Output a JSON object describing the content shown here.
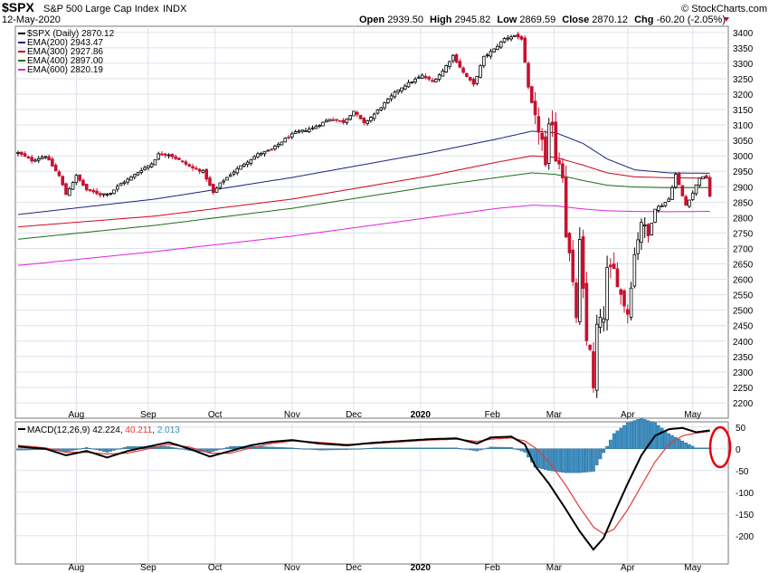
{
  "header": {
    "symbol": "$SPX",
    "name": "S&P 500 Large Cap Index",
    "exchange": "INDX",
    "date": "12-May-2020",
    "copyright": "© StockCharts.com",
    "quote": {
      "open_label": "Open",
      "open": "2939.50",
      "high_label": "High",
      "high": "2945.82",
      "low_label": "Low",
      "low": "2869.59",
      "close_label": "Close",
      "close": "2870.12",
      "chg_label": "Chg",
      "chg": "-60.20 (-2.05%)"
    }
  },
  "legend": {
    "price": "$SPX (Daily) 2870.12",
    "ema200": "EMA(200) 2943.47",
    "ema300": "EMA(300) 2927.86",
    "ema400": "EMA(400) 2897.00",
    "ema600": "EMA(600) 2820.19"
  },
  "macd_legend": {
    "label": "MACD(12,26,9)",
    "macd": "42.224",
    "signal": "40.211",
    "hist": "2.013"
  },
  "colors": {
    "up": "#000000",
    "down": "#c8102e",
    "ema200": "#1a237e",
    "ema300": "#d0021b",
    "ema400": "#1b6e1b",
    "ema600": "#e020e0",
    "macd": "#000000",
    "signal": "#e53935",
    "histogram": "#3b8fc4",
    "grid": "#dde2ea",
    "highlight": "#e8000b"
  },
  "chart_data": [
    {
      "type": "candlestick",
      "title": "$SPX S&P 500 Large Cap Index (Daily)",
      "ylim": [
        2150,
        3420
      ],
      "y_ticks": [
        2200,
        2250,
        2300,
        2350,
        2400,
        2450,
        2500,
        2550,
        2600,
        2650,
        2700,
        2750,
        2800,
        2850,
        2900,
        2950,
        3000,
        3050,
        3100,
        3150,
        3200,
        3250,
        3300,
        3350,
        3400
      ],
      "x_ticks": [
        {
          "label": "Aug",
          "x": 17.0
        },
        {
          "label": "Sep",
          "x": 38.0
        },
        {
          "label": "Oct",
          "x": 57.5
        },
        {
          "label": "Nov",
          "x": 80.0
        },
        {
          "label": "Dec",
          "x": 98.0
        },
        {
          "label": "2020",
          "x": 117.5,
          "bold": true
        },
        {
          "label": "Feb",
          "x": 138.5
        },
        {
          "label": "Mar",
          "x": 156.5
        },
        {
          "label": "Apr",
          "x": 178.0
        },
        {
          "label": "May",
          "x": 197.0
        }
      ],
      "x_range": [
        0,
        205
      ],
      "anchors": [
        [
          0,
          3010
        ],
        [
          4,
          2985
        ],
        [
          8,
          3000
        ],
        [
          12,
          2935
        ],
        [
          14,
          2875
        ],
        [
          17,
          2935
        ],
        [
          20,
          2890
        ],
        [
          24,
          2875
        ],
        [
          27,
          2880
        ],
        [
          30,
          2910
        ],
        [
          33,
          2930
        ],
        [
          36,
          2955
        ],
        [
          39,
          2975
        ],
        [
          41,
          3005
        ],
        [
          44,
          3005
        ],
        [
          48,
          2980
        ],
        [
          51,
          2960
        ],
        [
          54,
          2950
        ],
        [
          57,
          2880
        ],
        [
          59,
          2910
        ],
        [
          62,
          2940
        ],
        [
          66,
          2975
        ],
        [
          70,
          3005
        ],
        [
          74,
          3020
        ],
        [
          78,
          3055
        ],
        [
          81,
          3075
        ],
        [
          86,
          3090
        ],
        [
          91,
          3120
        ],
        [
          95,
          3110
        ],
        [
          98,
          3145
        ],
        [
          101,
          3105
        ],
        [
          104,
          3135
        ],
        [
          107,
          3170
        ],
        [
          111,
          3215
        ],
        [
          114,
          3235
        ],
        [
          118,
          3260
        ],
        [
          121,
          3240
        ],
        [
          124,
          3275
        ],
        [
          127,
          3325
        ],
        [
          130,
          3270
        ],
        [
          133,
          3230
        ],
        [
          136,
          3320
        ],
        [
          139,
          3345
        ],
        [
          142,
          3380
        ],
        [
          145,
          3390
        ],
        [
          147,
          3380
        ],
        [
          149,
          3220
        ],
        [
          151,
          3120
        ],
        [
          153,
          3050
        ],
        [
          154,
          2960
        ],
        [
          155,
          3090
        ],
        [
          156,
          3110
        ],
        [
          157,
          2990
        ],
        [
          158,
          2980
        ],
        [
          159,
          2940
        ],
        [
          160,
          2745
        ],
        [
          161,
          2680
        ],
        [
          163,
          2480
        ],
        [
          164,
          2720
        ],
        [
          166,
          2400
        ],
        [
          167,
          2380
        ],
        [
          168,
          2240
        ],
        [
          169,
          2450
        ],
        [
          171,
          2480
        ],
        [
          172,
          2630
        ],
        [
          174,
          2630
        ],
        [
          176,
          2550
        ],
        [
          178,
          2490
        ],
        [
          180,
          2680
        ],
        [
          182,
          2790
        ],
        [
          184,
          2740
        ],
        [
          186,
          2830
        ],
        [
          188,
          2840
        ],
        [
          190,
          2860
        ],
        [
          192,
          2940
        ],
        [
          194,
          2870
        ],
        [
          195,
          2840
        ],
        [
          197,
          2880
        ],
        [
          199,
          2930
        ],
        [
          201,
          2930
        ],
        [
          202,
          2870
        ]
      ],
      "candle_count": 203,
      "ema_series": [
        {
          "name": "EMA(200)",
          "color": "#1a237e",
          "anchors": [
            [
              0,
              2810
            ],
            [
              40,
              2860
            ],
            [
              80,
              2930
            ],
            [
              120,
              3010
            ],
            [
              140,
              3055
            ],
            [
              150,
              3080
            ],
            [
              157,
              3075
            ],
            [
              165,
              3040
            ],
            [
              172,
              2990
            ],
            [
              180,
              2955
            ],
            [
              190,
              2945
            ],
            [
              202,
              2943.47
            ]
          ]
        },
        {
          "name": "EMA(300)",
          "color": "#d0021b",
          "anchors": [
            [
              0,
              2770
            ],
            [
              40,
              2805
            ],
            [
              80,
              2860
            ],
            [
              120,
              2935
            ],
            [
              140,
              2980
            ],
            [
              150,
              3000
            ],
            [
              157,
              2995
            ],
            [
              165,
              2970
            ],
            [
              172,
              2945
            ],
            [
              180,
              2932
            ],
            [
              190,
              2929
            ],
            [
              202,
              2927.86
            ]
          ]
        },
        {
          "name": "EMA(400)",
          "color": "#1b6e1b",
          "anchors": [
            [
              0,
              2730
            ],
            [
              40,
              2775
            ],
            [
              80,
              2830
            ],
            [
              120,
              2900
            ],
            [
              140,
              2930
            ],
            [
              150,
              2945
            ],
            [
              157,
              2940
            ],
            [
              165,
              2920
            ],
            [
              172,
              2905
            ],
            [
              180,
              2899
            ],
            [
              190,
              2897
            ],
            [
              202,
              2897.0
            ]
          ]
        },
        {
          "name": "EMA(600)",
          "color": "#e020e0",
          "anchors": [
            [
              0,
              2645
            ],
            [
              40,
              2690
            ],
            [
              80,
              2740
            ],
            [
              120,
              2800
            ],
            [
              140,
              2830
            ],
            [
              150,
              2840
            ],
            [
              157,
              2838
            ],
            [
              165,
              2828
            ],
            [
              172,
              2822
            ],
            [
              180,
              2820
            ],
            [
              190,
              2819
            ],
            [
              202,
              2820.19
            ]
          ]
        }
      ]
    },
    {
      "type": "line+histogram",
      "title": "MACD(12,26,9)",
      "ylim": [
        -265,
        62
      ],
      "y_ticks": [
        50,
        0,
        -50,
        -100,
        -150,
        -200
      ],
      "macd_anchors": [
        [
          0,
          5
        ],
        [
          8,
          0
        ],
        [
          14,
          -15
        ],
        [
          20,
          -5
        ],
        [
          26,
          -20
        ],
        [
          32,
          -5
        ],
        [
          38,
          5
        ],
        [
          44,
          15
        ],
        [
          50,
          0
        ],
        [
          56,
          -18
        ],
        [
          62,
          -5
        ],
        [
          68,
          8
        ],
        [
          74,
          16
        ],
        [
          80,
          20
        ],
        [
          88,
          12
        ],
        [
          96,
          8
        ],
        [
          104,
          14
        ],
        [
          112,
          18
        ],
        [
          120,
          22
        ],
        [
          128,
          24
        ],
        [
          134,
          12
        ],
        [
          138,
          26
        ],
        [
          144,
          28
        ],
        [
          148,
          10
        ],
        [
          151,
          -40
        ],
        [
          155,
          -80
        ],
        [
          160,
          -140
        ],
        [
          164,
          -190
        ],
        [
          168,
          -232
        ],
        [
          171,
          -205
        ],
        [
          174,
          -150
        ],
        [
          178,
          -80
        ],
        [
          182,
          -15
        ],
        [
          186,
          30
        ],
        [
          190,
          45
        ],
        [
          194,
          48
        ],
        [
          198,
          38
        ],
        [
          202,
          42.224
        ]
      ],
      "signal_anchors": [
        [
          0,
          8
        ],
        [
          8,
          2
        ],
        [
          14,
          -8
        ],
        [
          20,
          -8
        ],
        [
          26,
          -12
        ],
        [
          32,
          -10
        ],
        [
          38,
          0
        ],
        [
          44,
          10
        ],
        [
          50,
          4
        ],
        [
          56,
          -10
        ],
        [
          62,
          -10
        ],
        [
          68,
          2
        ],
        [
          74,
          12
        ],
        [
          80,
          18
        ],
        [
          88,
          15
        ],
        [
          96,
          10
        ],
        [
          104,
          12
        ],
        [
          112,
          16
        ],
        [
          120,
          20
        ],
        [
          128,
          22
        ],
        [
          134,
          17
        ],
        [
          138,
          22
        ],
        [
          144,
          25
        ],
        [
          148,
          18
        ],
        [
          151,
          2
        ],
        [
          155,
          -30
        ],
        [
          160,
          -85
        ],
        [
          164,
          -135
        ],
        [
          168,
          -180
        ],
        [
          171,
          -196
        ],
        [
          174,
          -185
        ],
        [
          178,
          -140
        ],
        [
          182,
          -85
        ],
        [
          186,
          -30
        ],
        [
          190,
          10
        ],
        [
          194,
          30
        ],
        [
          198,
          36
        ],
        [
          202,
          40.211
        ]
      ],
      "hist_last": 2.013
    }
  ]
}
